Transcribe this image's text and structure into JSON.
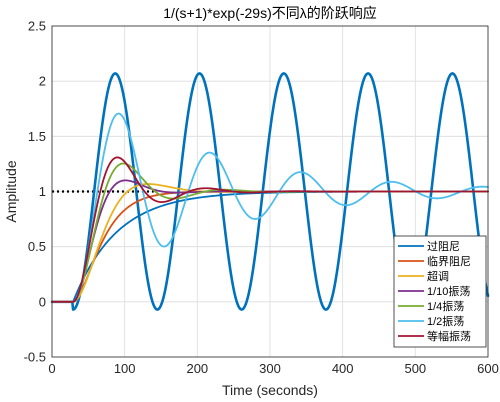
{
  "chart_data": {
    "type": "line",
    "title": "1/(s+1)*exp(-29s)不同λ的阶跃响应",
    "xlabel": "Time (seconds)",
    "ylabel": "Amplitude",
    "xlim": [
      0,
      600
    ],
    "ylim": [
      -0.5,
      2.5
    ],
    "xticks": [
      "0",
      "100",
      "200",
      "300",
      "400",
      "500",
      "600"
    ],
    "yticks": [
      "-0.5",
      "0",
      "0.5",
      "1",
      "1.5",
      "2",
      "2.5"
    ],
    "grid": true,
    "legend_position": "bottom-right",
    "delay": 29,
    "reference_line": {
      "y": 1,
      "style": "dotted",
      "color": "#000000",
      "x_range": [
        0,
        140
      ]
    },
    "series": [
      {
        "name": "过阻尼",
        "color": "#0072BD",
        "kind": "overdamped",
        "tau": 60
      },
      {
        "name": "临界阻尼",
        "color": "#D95319",
        "kind": "critical",
        "tau": 22
      },
      {
        "name": "超调",
        "color": "#EDB120",
        "kind": "oscillating",
        "zeta": 0.65,
        "wn": 0.04
      },
      {
        "name": "1/10振荡",
        "color": "#7E2F8E",
        "kind": "oscillating",
        "zeta": 0.59,
        "wn": 0.054
      },
      {
        "name": "1/4振荡",
        "color": "#77AC30",
        "kind": "oscillating",
        "zeta": 0.4,
        "wn": 0.0495
      },
      {
        "name": "1/2振荡",
        "color": "#4DBEEE",
        "kind": "oscillating",
        "zeta": 0.11,
        "wn": 0.0505
      },
      {
        "name": "等幅振荡",
        "color": "#A2142F",
        "kind": "oscillating",
        "zeta": 0.35,
        "wn": 0.055
      },
      {
        "name": "",
        "color": "#0072BD",
        "kind": "sustained",
        "amplitude": 1.07,
        "period": 116,
        "width": 2.6,
        "in_legend": false
      }
    ]
  }
}
